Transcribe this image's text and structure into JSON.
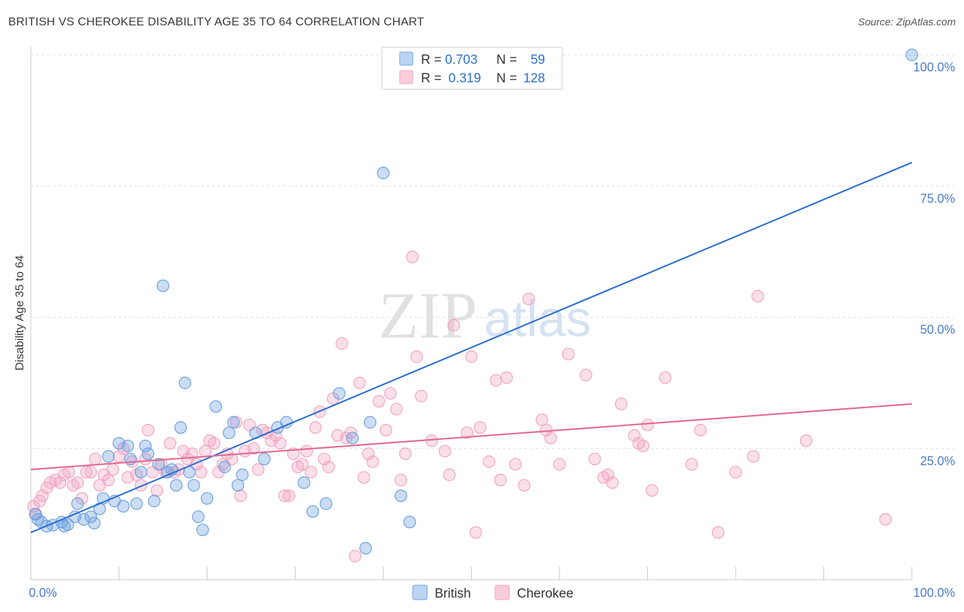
{
  "header": {
    "title": "BRITISH VS CHEROKEE DISABILITY AGE 35 TO 64 CORRELATION CHART",
    "source": "Source: ZipAtlas.com"
  },
  "watermark": {
    "zip": "ZIP",
    "atlas": "atlas"
  },
  "colors": {
    "british": "#6a9fe0",
    "british_line": "#2f6fd0",
    "cherokee": "#f2a3bf",
    "cherokee_line": "#e26a92",
    "tick_text": "#4a7cc7"
  },
  "legend": {
    "r_label": "R =",
    "n_label": "N =",
    "rows": [
      {
        "series": "British",
        "r": "0.703",
        "n": "59"
      },
      {
        "series": "Cherokee",
        "r": "0.319",
        "n": "128"
      }
    ]
  },
  "chart_data": {
    "type": "scatter",
    "title": "BRITISH VS CHEROKEE DISABILITY AGE 35 TO 64 CORRELATION CHART",
    "xlabel": "",
    "ylabel": "Disability Age 35 to 64",
    "xlim": [
      0,
      100
    ],
    "ylim": [
      0,
      100
    ],
    "x_tick_labels": [
      "0.0%",
      "100.0%"
    ],
    "y_ticks": [
      25,
      50,
      75,
      100
    ],
    "y_tick_labels": [
      "25.0%",
      "50.0%",
      "75.0%",
      "100.0%"
    ],
    "grid": "horizontal dashed",
    "legend_position": "top-center",
    "series": [
      {
        "name": "British",
        "color": "#6a9fe0",
        "trend": {
          "x": [
            0,
            100
          ],
          "y": [
            9.0,
            79.5
          ]
        },
        "points": [
          [
            0.5,
            12.5
          ],
          [
            0.8,
            11.5
          ],
          [
            1.2,
            11.0
          ],
          [
            1.8,
            10.2
          ],
          [
            2.5,
            10.4
          ],
          [
            3.5,
            11.0
          ],
          [
            3.8,
            10.2
          ],
          [
            4.2,
            10.5
          ],
          [
            5.0,
            12.0
          ],
          [
            5.3,
            14.5
          ],
          [
            6.0,
            11.5
          ],
          [
            6.8,
            12.0
          ],
          [
            7.2,
            10.8
          ],
          [
            7.8,
            13.5
          ],
          [
            8.2,
            15.5
          ],
          [
            8.8,
            23.5
          ],
          [
            9.5,
            15.0
          ],
          [
            10.0,
            26.0
          ],
          [
            10.5,
            14.0
          ],
          [
            11.0,
            25.5
          ],
          [
            11.3,
            23.0
          ],
          [
            12.0,
            14.5
          ],
          [
            12.5,
            20.5
          ],
          [
            13.0,
            25.5
          ],
          [
            13.3,
            24.0
          ],
          [
            14.0,
            15.0
          ],
          [
            14.5,
            22.0
          ],
          [
            15.0,
            56.0
          ],
          [
            15.5,
            20.5
          ],
          [
            16.0,
            21.0
          ],
          [
            16.5,
            18.0
          ],
          [
            17.0,
            29.0
          ],
          [
            17.5,
            37.5
          ],
          [
            18.0,
            20.5
          ],
          [
            18.5,
            18.0
          ],
          [
            19.0,
            12.0
          ],
          [
            19.5,
            9.5
          ],
          [
            20.0,
            15.5
          ],
          [
            21.0,
            33.0
          ],
          [
            22.0,
            21.5
          ],
          [
            22.5,
            28.0
          ],
          [
            23.0,
            30.0
          ],
          [
            23.5,
            18.0
          ],
          [
            24.0,
            20.0
          ],
          [
            26.5,
            23.0
          ],
          [
            28.0,
            29.0
          ],
          [
            29.0,
            30.0
          ],
          [
            31.0,
            18.5
          ],
          [
            32.0,
            13.0
          ],
          [
            33.5,
            14.5
          ],
          [
            35.0,
            35.5
          ],
          [
            36.5,
            27.0
          ],
          [
            38.0,
            6.0
          ],
          [
            38.5,
            30.0
          ],
          [
            40.0,
            77.5
          ],
          [
            42.0,
            16.0
          ],
          [
            43.0,
            11.0
          ],
          [
            25.5,
            28.0
          ],
          [
            100.0,
            100.0
          ]
        ]
      },
      {
        "name": "Cherokee",
        "color": "#f2a3bf",
        "trend": {
          "x": [
            0,
            100
          ],
          "y": [
            21.0,
            33.5
          ]
        },
        "points": [
          [
            0.3,
            14.0
          ],
          [
            0.6,
            12.5
          ],
          [
            1.0,
            15.0
          ],
          [
            1.3,
            16.0
          ],
          [
            1.8,
            17.5
          ],
          [
            2.2,
            18.5
          ],
          [
            2.8,
            19.0
          ],
          [
            3.3,
            18.5
          ],
          [
            3.8,
            20.0
          ],
          [
            4.3,
            20.5
          ],
          [
            4.8,
            18.0
          ],
          [
            5.3,
            18.5
          ],
          [
            5.8,
            15.5
          ],
          [
            6.3,
            20.5
          ],
          [
            6.8,
            20.5
          ],
          [
            7.3,
            23.0
          ],
          [
            7.8,
            18.0
          ],
          [
            8.3,
            20.0
          ],
          [
            8.8,
            19.0
          ],
          [
            9.3,
            21.0
          ],
          [
            10.0,
            23.5
          ],
          [
            10.5,
            25.0
          ],
          [
            11.0,
            19.5
          ],
          [
            11.5,
            22.5
          ],
          [
            12.0,
            20.0
          ],
          [
            12.5,
            18.0
          ],
          [
            13.0,
            23.0
          ],
          [
            13.3,
            28.5
          ],
          [
            13.8,
            20.5
          ],
          [
            14.3,
            17.0
          ],
          [
            14.8,
            22.0
          ],
          [
            15.3,
            20.5
          ],
          [
            15.8,
            26.0
          ],
          [
            16.3,
            20.5
          ],
          [
            16.8,
            21.0
          ],
          [
            17.3,
            24.5
          ],
          [
            17.8,
            23.0
          ],
          [
            18.3,
            24.0
          ],
          [
            18.8,
            22.0
          ],
          [
            19.3,
            20.5
          ],
          [
            19.8,
            24.5
          ],
          [
            20.3,
            26.5
          ],
          [
            20.8,
            26.0
          ],
          [
            21.3,
            20.5
          ],
          [
            21.8,
            22.0
          ],
          [
            22.3,
            24.0
          ],
          [
            22.8,
            23.0
          ],
          [
            23.3,
            30.0
          ],
          [
            23.8,
            16.0
          ],
          [
            24.3,
            24.5
          ],
          [
            24.8,
            29.5
          ],
          [
            25.3,
            25.0
          ],
          [
            25.8,
            21.0
          ],
          [
            26.3,
            28.5
          ],
          [
            26.8,
            28.0
          ],
          [
            27.3,
            26.5
          ],
          [
            27.8,
            27.5
          ],
          [
            28.3,
            26.0
          ],
          [
            28.8,
            16.0
          ],
          [
            29.3,
            16.0
          ],
          [
            29.8,
            24.0
          ],
          [
            30.3,
            21.5
          ],
          [
            30.8,
            22.0
          ],
          [
            31.3,
            24.5
          ],
          [
            31.8,
            20.5
          ],
          [
            32.3,
            29.0
          ],
          [
            32.8,
            32.0
          ],
          [
            33.3,
            23.0
          ],
          [
            33.8,
            21.5
          ],
          [
            34.3,
            34.5
          ],
          [
            34.8,
            27.5
          ],
          [
            35.3,
            45.0
          ],
          [
            35.8,
            27.0
          ],
          [
            36.3,
            28.0
          ],
          [
            36.8,
            4.5
          ],
          [
            37.3,
            37.5
          ],
          [
            37.8,
            19.5
          ],
          [
            38.3,
            24.0
          ],
          [
            38.8,
            22.5
          ],
          [
            39.5,
            34.0
          ],
          [
            40.3,
            28.5
          ],
          [
            40.8,
            35.5
          ],
          [
            41.5,
            32.5
          ],
          [
            42.0,
            19.0
          ],
          [
            42.5,
            24.0
          ],
          [
            43.3,
            61.5
          ],
          [
            43.8,
            42.5
          ],
          [
            44.3,
            35.0
          ],
          [
            45.5,
            26.5
          ],
          [
            47.0,
            24.5
          ],
          [
            47.5,
            20.0
          ],
          [
            49.5,
            28.0
          ],
          [
            50.0,
            42.5
          ],
          [
            50.5,
            9.0
          ],
          [
            51.0,
            29.0
          ],
          [
            52.0,
            22.5
          ],
          [
            52.8,
            38.0
          ],
          [
            53.3,
            19.0
          ],
          [
            54.0,
            38.5
          ],
          [
            55.0,
            22.0
          ],
          [
            56.0,
            18.0
          ],
          [
            56.5,
            53.5
          ],
          [
            58.0,
            30.5
          ],
          [
            58.5,
            28.5
          ],
          [
            59.0,
            27.0
          ],
          [
            60.0,
            22.0
          ],
          [
            61.0,
            43.0
          ],
          [
            63.0,
            39.0
          ],
          [
            64.0,
            23.0
          ],
          [
            65.0,
            19.5
          ],
          [
            65.5,
            20.0
          ],
          [
            66.0,
            18.5
          ],
          [
            67.0,
            33.5
          ],
          [
            68.5,
            27.5
          ],
          [
            69.0,
            26.0
          ],
          [
            69.5,
            25.5
          ],
          [
            70.0,
            29.5
          ],
          [
            70.5,
            17.0
          ],
          [
            72.0,
            38.5
          ],
          [
            75.0,
            22.0
          ],
          [
            76.0,
            28.5
          ],
          [
            78.0,
            9.0
          ],
          [
            80.0,
            20.5
          ],
          [
            82.0,
            23.5
          ],
          [
            82.5,
            54.0
          ],
          [
            88.0,
            26.5
          ],
          [
            97.0,
            11.5
          ],
          [
            48.0,
            48.5
          ]
        ]
      }
    ]
  }
}
